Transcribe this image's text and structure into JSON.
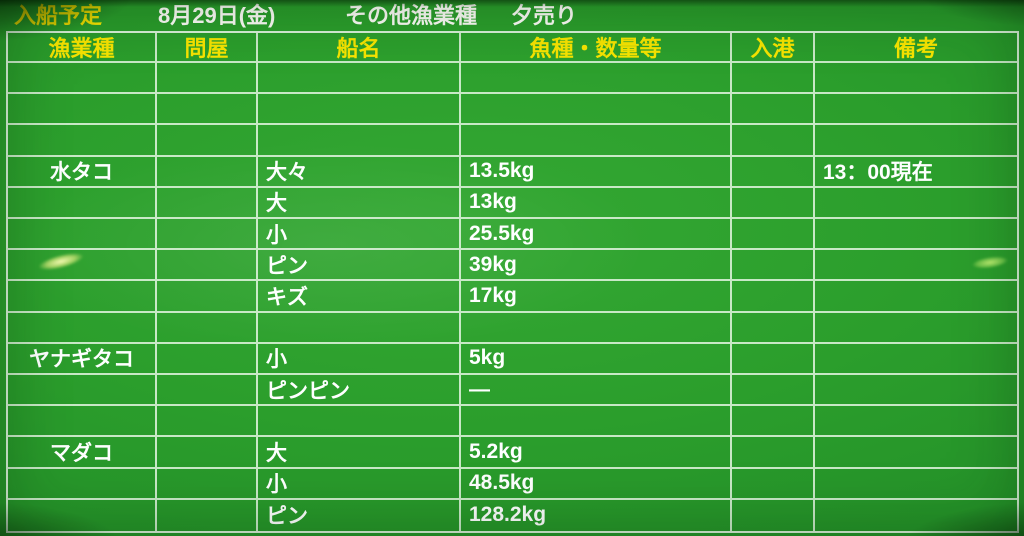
{
  "title_bar": {
    "title": "入船予定",
    "date": "8月29日(金)",
    "category": "その他漁業種",
    "sale": "夕売り"
  },
  "table": {
    "columns": [
      "漁業種",
      "問屋",
      "船名",
      "魚種・数量等",
      "入港",
      "備考"
    ],
    "rows": [
      [
        "",
        "",
        "",
        "",
        "",
        ""
      ],
      [
        "",
        "",
        "",
        "",
        "",
        ""
      ],
      [
        "",
        "",
        "",
        "",
        "",
        ""
      ],
      [
        "水タコ",
        "",
        "大々",
        "13.5kg",
        "",
        "13：00現在"
      ],
      [
        "",
        "",
        "大",
        "13kg",
        "",
        ""
      ],
      [
        "",
        "",
        "小",
        "25.5kg",
        "",
        ""
      ],
      [
        "",
        "",
        "ピン",
        "39kg",
        "",
        ""
      ],
      [
        "",
        "",
        "キズ",
        "17kg",
        "",
        ""
      ],
      [
        "",
        "",
        "",
        "",
        "",
        ""
      ],
      [
        "ヤナギタコ",
        "",
        "小",
        "5kg",
        "",
        ""
      ],
      [
        "",
        "",
        "ピンピン",
        "―",
        "",
        ""
      ],
      [
        "",
        "",
        "",
        "",
        "",
        ""
      ],
      [
        "マダコ",
        "",
        "大",
        "5.2kg",
        "",
        ""
      ],
      [
        "",
        "",
        "小",
        "48.5kg",
        "",
        ""
      ],
      [
        "",
        "",
        "ピン",
        "128.2kg",
        "",
        ""
      ]
    ]
  },
  "colors": {
    "background_green": "#2b9e2c",
    "header_text_yellow": "#f6e400",
    "body_text_white": "#feffff",
    "grid_line": "#def2dc"
  }
}
